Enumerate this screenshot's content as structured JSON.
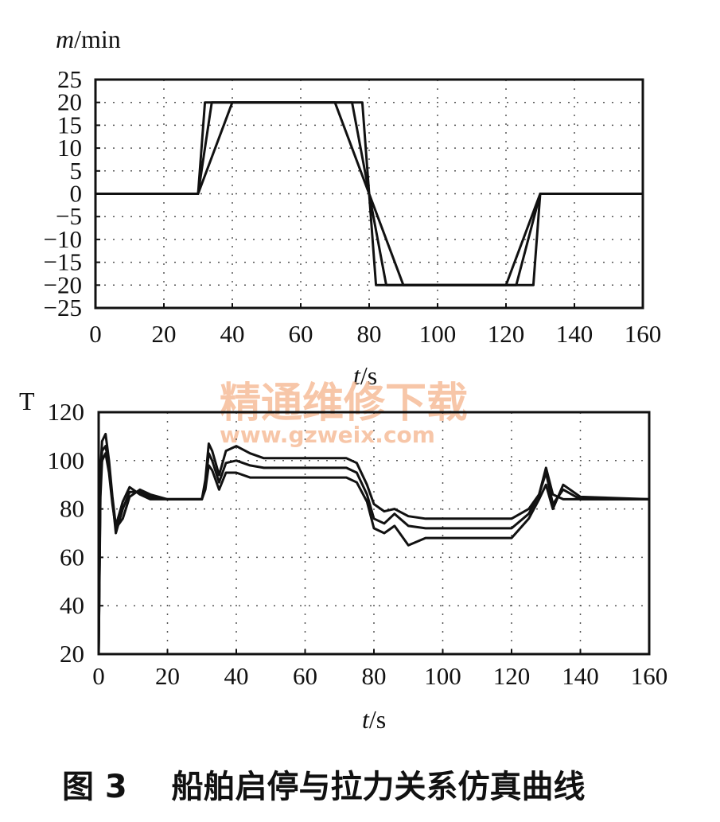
{
  "watermark": {
    "text": "精通维修下载",
    "url": "www.gzweix.com"
  },
  "caption": "图 3    船舶启停与拉力关系仿真曲线",
  "chart_data": [
    {
      "type": "line",
      "ylabel_italic": "m",
      "ylabel_rest": "/min",
      "xlabel_italic": "t",
      "xlabel_rest": "/s",
      "xlim": [
        0,
        160
      ],
      "ylim": [
        -25,
        25
      ],
      "xticks": [
        0,
        20,
        40,
        60,
        80,
        100,
        120,
        140,
        160
      ],
      "yticks": [
        25,
        20,
        15,
        10,
        5,
        0,
        -5,
        -10,
        -15,
        -20,
        -25
      ],
      "ytick_labels": [
        "25",
        "20",
        "15",
        "10",
        "5",
        "0",
        "−5",
        "−10",
        "−15",
        "−20",
        "−25"
      ],
      "grid": true,
      "series": [
        {
          "x": [
            0,
            30,
            32,
            78,
            82,
            128,
            130,
            160
          ],
          "y": [
            0,
            0,
            20,
            20,
            -20,
            -20,
            0,
            0
          ]
        },
        {
          "x": [
            0,
            30,
            34,
            75,
            85,
            123,
            130,
            160
          ],
          "y": [
            0,
            0,
            20,
            20,
            -20,
            -20,
            0,
            0
          ]
        },
        {
          "x": [
            0,
            30,
            40,
            70,
            90,
            120,
            130,
            160
          ],
          "y": [
            0,
            0,
            20,
            20,
            -20,
            -20,
            0,
            0
          ]
        }
      ]
    },
    {
      "type": "line",
      "ylabel": "T",
      "xlabel_italic": "t",
      "xlabel_rest": "/s",
      "xlim": [
        0,
        160
      ],
      "ylim": [
        20,
        120
      ],
      "xticks": [
        0,
        20,
        40,
        60,
        80,
        100,
        120,
        140,
        160
      ],
      "yticks": [
        120,
        100,
        80,
        60,
        40,
        20
      ],
      "grid": true,
      "series": [
        {
          "x": [
            0,
            0.5,
            1,
            2,
            3,
            4,
            5,
            7,
            9,
            12,
            15,
            20,
            30,
            31,
            32,
            33,
            35,
            37,
            40,
            44,
            48,
            55,
            72,
            75,
            78,
            80,
            83,
            86,
            90,
            95,
            100,
            120,
            125,
            128,
            130,
            132,
            135,
            140,
            160
          ],
          "y": [
            20,
            95,
            108,
            111,
            100,
            85,
            73,
            83,
            89,
            86,
            84,
            84,
            84,
            92,
            107,
            104,
            94,
            104,
            106,
            103,
            101,
            101,
            101,
            99,
            90,
            82,
            79,
            80,
            77,
            76,
            76,
            76,
            80,
            86,
            97,
            86,
            84,
            84,
            84
          ]
        },
        {
          "x": [
            0,
            0.5,
            1,
            2,
            3,
            4,
            5,
            7,
            9,
            12,
            15,
            20,
            30,
            31,
            32,
            33,
            35,
            37,
            40,
            44,
            48,
            55,
            72,
            75,
            78,
            80,
            83,
            86,
            90,
            95,
            100,
            120,
            125,
            128,
            130,
            132,
            135,
            140,
            160
          ],
          "y": [
            20,
            90,
            104,
            106,
            98,
            84,
            70,
            80,
            87,
            87,
            85,
            84,
            84,
            90,
            103,
            100,
            91,
            99,
            100,
            98,
            97,
            97,
            97,
            95,
            86,
            76,
            74,
            78,
            73,
            72,
            72,
            72,
            78,
            86,
            95,
            82,
            88,
            84,
            84
          ]
        },
        {
          "x": [
            0,
            0.5,
            1,
            2,
            3,
            4,
            5,
            7,
            9,
            12,
            15,
            20,
            30,
            31,
            32,
            33,
            35,
            37,
            40,
            44,
            48,
            55,
            72,
            75,
            78,
            80,
            83,
            86,
            90,
            95,
            100,
            120,
            125,
            128,
            130,
            132,
            135,
            140,
            160
          ],
          "y": [
            20,
            85,
            100,
            103,
            95,
            82,
            72,
            76,
            85,
            88,
            86,
            84,
            84,
            88,
            98,
            96,
            88,
            95,
            95,
            93,
            93,
            93,
            93,
            91,
            83,
            72,
            70,
            73,
            65,
            68,
            68,
            68,
            76,
            84,
            90,
            80,
            90,
            85,
            84
          ]
        }
      ]
    }
  ]
}
